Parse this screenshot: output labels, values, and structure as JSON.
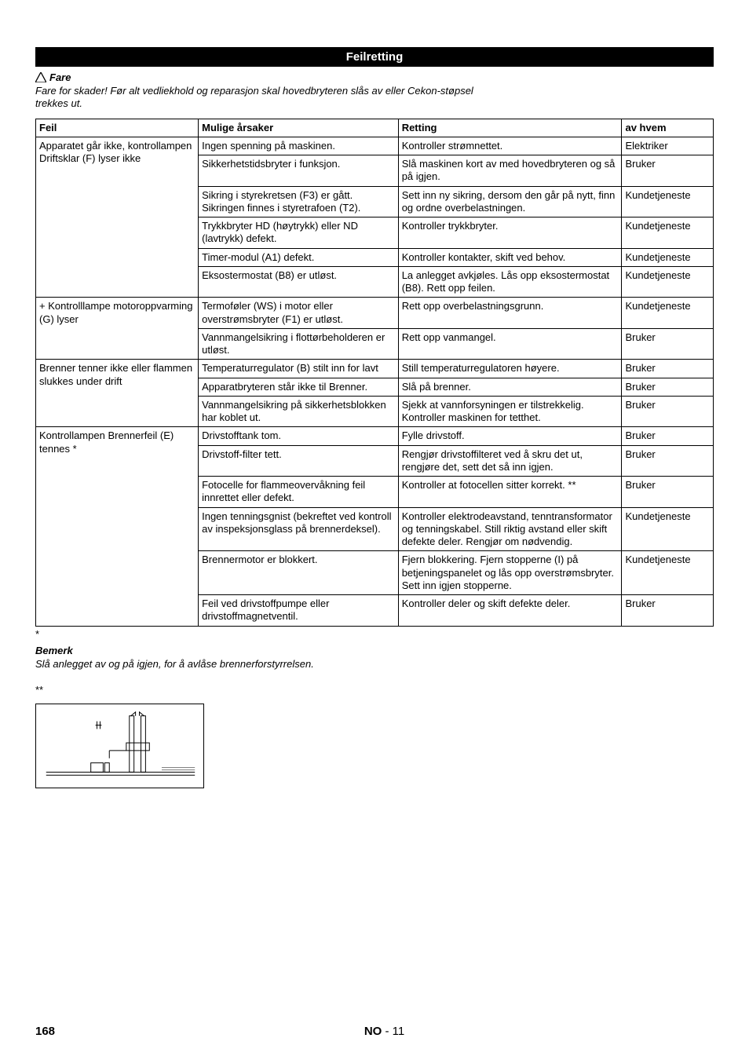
{
  "header": {
    "title": "Feilretting"
  },
  "danger": {
    "label": "Fare",
    "text": "Fare for skader! Før alt vedliekhold og reparasjon skal hovedbryteren slås av eller Cekon-støpsel trekkes ut."
  },
  "table": {
    "headers": {
      "feil": "Feil",
      "mulige": "Mulige årsaker",
      "retting": "Retting",
      "avhvem": "av hvem"
    },
    "groups": [
      {
        "feil": "Apparatet går ikke, kontrollampen Driftsklar (F) lyser ikke",
        "rows": [
          {
            "mulige": "Ingen spenning på maskinen.",
            "retting": "Kontroller strømnettet.",
            "avhvem": "Elektriker"
          },
          {
            "mulige": "Sikkerhetstidsbryter i funksjon.",
            "retting": "Slå maskinen kort av med hovedbryteren og så på igjen.",
            "avhvem": "Bruker"
          },
          {
            "mulige": "Sikring i styrekretsen (F3) er gått. Sikringen finnes i styretrafoen (T2).",
            "retting": "Sett inn ny sikring, dersom den går på nytt, finn og ordne overbelastningen.",
            "avhvem": "Kundetjeneste"
          },
          {
            "mulige": "Trykkbryter HD (høytrykk) eller ND (lavtrykk) defekt.",
            "retting": "Kontroller trykkbryter.",
            "avhvem": "Kundetjeneste"
          },
          {
            "mulige": "Timer-modul (A1) defekt.",
            "retting": "Kontroller kontakter, skift ved behov.",
            "avhvem": "Kundetjeneste"
          },
          {
            "mulige": "Eksostermostat (B8) er utløst.",
            "retting": "La anlegget avkjøles. Lås opp eksostermostat (B8). Rett opp feilen.",
            "avhvem": "Kundetjeneste"
          }
        ]
      },
      {
        "feil": "+ Kontrolllampe motoroppvarming (G) lyser",
        "rows": [
          {
            "mulige": "Termoføler (WS) i motor eller overstrømsbryter (F1) er utløst.",
            "retting": "Rett opp overbelastningsgrunn.",
            "avhvem": "Kundetjeneste"
          },
          {
            "mulige": "Vannmangelsikring i flottørbeholderen er utløst.",
            "retting": "Rett opp vanmangel.",
            "avhvem": "Bruker"
          }
        ]
      },
      {
        "feil": "Brenner tenner ikke eller flammen slukkes under drift",
        "rows": [
          {
            "mulige": "Temperaturregulator (B) stilt inn for lavt",
            "retting": "Still temperaturregulatoren høyere.",
            "avhvem": "Bruker"
          },
          {
            "mulige": "Apparatbryteren står ikke til Brenner.",
            "retting": "Slå på brenner.",
            "avhvem": "Bruker"
          },
          {
            "mulige": "Vannmangelsikring på sikkerhetsblokken har koblet ut.",
            "retting": "Sjekk at vannforsyningen er tilstrekkelig. Kontroller maskinen for tetthet.",
            "avhvem": "Bruker"
          }
        ]
      },
      {
        "feil": "Kontrollampen Brennerfeil (E) tennes *",
        "rows": [
          {
            "mulige": "Drivstofftank tom.",
            "retting": "Fylle drivstoff.",
            "avhvem": "Bruker"
          },
          {
            "mulige": "Drivstoff-filter tett.",
            "retting": "Rengjør drivstoffilteret ved å skru det ut, rengjøre det, sett det så inn igjen.",
            "avhvem": "Bruker"
          },
          {
            "mulige": "Fotocelle for flammeovervåkning feil innrettet eller defekt.",
            "retting": "Kontroller at fotocellen sitter korrekt. **",
            "avhvem": "Bruker"
          },
          {
            "mulige": "Ingen tenningsgnist (bekreftet ved kontroll av inspeksjonsglass på brennerdeksel).",
            "retting": "Kontroller elektrodeavstand, tenntransformator og tenningskabel. Still riktig avstand eller skift defekte deler. Rengjør om nødvendig.",
            "avhvem": "Kundetjeneste"
          },
          {
            "mulige": "Brennermotor er blokkert.",
            "retting": "Fjern blokkering. Fjern stopperne (I) på betjeningspanelet og lås opp overstrømsbryter. Sett inn igjen stopperne.",
            "avhvem": "Kundetjeneste"
          },
          {
            "mulige": "Feil ved drivstoffpumpe eller drivstoffmagnetventil.",
            "retting": "Kontroller deler og skift defekte deler.",
            "avhvem": "Bruker"
          }
        ]
      }
    ]
  },
  "notes": {
    "asterisk": "*",
    "bemerk_label": "Bemerk",
    "bemerk_text": "Slå anlegget av og på igjen, for å avlåse brennerforstyrrelsen.",
    "double_asterisk": "**"
  },
  "footer": {
    "page": "168",
    "lang": "NO",
    "section": "- 11"
  }
}
